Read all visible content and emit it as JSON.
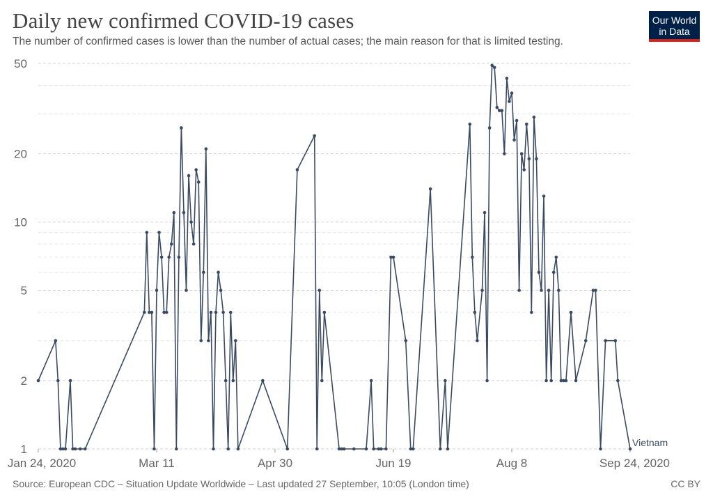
{
  "header": {
    "title": "Daily new confirmed COVID-19 cases",
    "subtitle": "The number of confirmed cases is lower than the number of actual cases; the main reason for that is limited testing."
  },
  "logo": {
    "line1": "Our World",
    "line2": "in Data",
    "bg_color": "#002147",
    "accent_color": "#ce261e"
  },
  "footer": {
    "source": "Source: European CDC – Situation Update Worldwide – Last updated 27 September, 10:05 (London time)",
    "license": "CC BY"
  },
  "chart_data": {
    "type": "line",
    "title": "Daily new confirmed COVID-19 cases",
    "y_scale": "log",
    "ylim": [
      1,
      50
    ],
    "y_ticks": [
      1,
      2,
      5,
      10,
      20,
      50
    ],
    "x_ticks": [
      "Jan 24, 2020",
      "Mar 11",
      "Apr 30",
      "Jun 19",
      "Aug 8",
      "Sep 24, 2020"
    ],
    "grid": true,
    "line_color": "#3a4a62",
    "series": [
      {
        "name": "Vietnam",
        "points": [
          [
            "2020-01-24",
            2
          ],
          [
            "2020-01-31",
            3
          ],
          [
            "2020-02-01",
            2
          ],
          [
            "2020-02-02",
            1
          ],
          [
            "2020-02-03",
            1
          ],
          [
            "2020-02-04",
            1
          ],
          [
            "2020-02-06",
            2
          ],
          [
            "2020-02-07",
            1
          ],
          [
            "2020-02-08",
            1
          ],
          [
            "2020-02-10",
            1
          ],
          [
            "2020-02-12",
            1
          ],
          [
            "2020-03-07",
            4
          ],
          [
            "2020-03-08",
            9
          ],
          [
            "2020-03-09",
            4
          ],
          [
            "2020-03-10",
            4
          ],
          [
            "2020-03-11",
            1
          ],
          [
            "2020-03-12",
            5
          ],
          [
            "2020-03-13",
            9
          ],
          [
            "2020-03-14",
            7
          ],
          [
            "2020-03-15",
            4
          ],
          [
            "2020-03-16",
            4
          ],
          [
            "2020-03-17",
            7
          ],
          [
            "2020-03-18",
            8
          ],
          [
            "2020-03-19",
            11
          ],
          [
            "2020-03-20",
            1
          ],
          [
            "2020-03-21",
            7
          ],
          [
            "2020-03-22",
            26
          ],
          [
            "2020-03-23",
            11
          ],
          [
            "2020-03-24",
            5
          ],
          [
            "2020-03-25",
            16
          ],
          [
            "2020-03-26",
            10
          ],
          [
            "2020-03-27",
            8
          ],
          [
            "2020-03-28",
            17
          ],
          [
            "2020-03-29",
            15
          ],
          [
            "2020-03-30",
            3
          ],
          [
            "2020-03-31",
            6
          ],
          [
            "2020-04-01",
            21
          ],
          [
            "2020-04-02",
            3
          ],
          [
            "2020-04-03",
            4
          ],
          [
            "2020-04-04",
            1
          ],
          [
            "2020-04-05",
            4
          ],
          [
            "2020-04-06",
            6
          ],
          [
            "2020-04-07",
            5
          ],
          [
            "2020-04-08",
            4
          ],
          [
            "2020-04-09",
            2
          ],
          [
            "2020-04-10",
            1
          ],
          [
            "2020-04-11",
            4
          ],
          [
            "2020-04-12",
            2
          ],
          [
            "2020-04-13",
            3
          ],
          [
            "2020-04-14",
            1
          ],
          [
            "2020-04-24",
            2
          ],
          [
            "2020-05-04",
            1
          ],
          [
            "2020-05-08",
            17
          ],
          [
            "2020-05-15",
            24
          ],
          [
            "2020-05-16",
            1
          ],
          [
            "2020-05-17",
            5
          ],
          [
            "2020-05-18",
            2
          ],
          [
            "2020-05-19",
            4
          ],
          [
            "2020-05-25",
            1
          ],
          [
            "2020-05-26",
            1
          ],
          [
            "2020-05-27",
            1
          ],
          [
            "2020-05-31",
            1
          ],
          [
            "2020-06-05",
            1
          ],
          [
            "2020-06-07",
            2
          ],
          [
            "2020-06-08",
            1
          ],
          [
            "2020-06-10",
            1
          ],
          [
            "2020-06-11",
            1
          ],
          [
            "2020-06-13",
            1
          ],
          [
            "2020-06-15",
            7
          ],
          [
            "2020-06-16",
            7
          ],
          [
            "2020-06-21",
            3
          ],
          [
            "2020-06-23",
            1
          ],
          [
            "2020-06-24",
            1
          ],
          [
            "2020-07-01",
            14
          ],
          [
            "2020-07-05",
            1
          ],
          [
            "2020-07-07",
            2
          ],
          [
            "2020-07-08",
            1
          ],
          [
            "2020-07-17",
            27
          ],
          [
            "2020-07-18",
            7
          ],
          [
            "2020-07-19",
            4
          ],
          [
            "2020-07-20",
            3
          ],
          [
            "2020-07-22",
            5
          ],
          [
            "2020-07-23",
            11
          ],
          [
            "2020-07-24",
            2
          ],
          [
            "2020-07-25",
            26
          ],
          [
            "2020-07-26",
            49
          ],
          [
            "2020-07-27",
            48
          ],
          [
            "2020-07-28",
            32
          ],
          [
            "2020-07-29",
            31
          ],
          [
            "2020-07-30",
            31
          ],
          [
            "2020-07-31",
            20
          ],
          [
            "2020-08-01",
            43
          ],
          [
            "2020-08-02",
            34
          ],
          [
            "2020-08-03",
            37
          ],
          [
            "2020-08-04",
            23
          ],
          [
            "2020-08-05",
            28
          ],
          [
            "2020-08-06",
            5
          ],
          [
            "2020-08-07",
            20
          ],
          [
            "2020-08-08",
            17
          ],
          [
            "2020-08-09",
            27
          ],
          [
            "2020-08-10",
            19
          ],
          [
            "2020-08-11",
            4
          ],
          [
            "2020-08-12",
            29
          ],
          [
            "2020-08-13",
            19
          ],
          [
            "2020-08-14",
            6
          ],
          [
            "2020-08-15",
            5
          ],
          [
            "2020-08-16",
            13
          ],
          [
            "2020-08-17",
            2
          ],
          [
            "2020-08-18",
            5
          ],
          [
            "2020-08-19",
            2
          ],
          [
            "2020-08-20",
            6
          ],
          [
            "2020-08-21",
            7
          ],
          [
            "2020-08-22",
            5
          ],
          [
            "2020-08-23",
            2
          ],
          [
            "2020-08-24",
            2
          ],
          [
            "2020-08-25",
            2
          ],
          [
            "2020-08-27",
            4
          ],
          [
            "2020-08-29",
            2
          ],
          [
            "2020-09-02",
            3
          ],
          [
            "2020-09-05",
            5
          ],
          [
            "2020-09-06",
            5
          ],
          [
            "2020-09-08",
            1
          ],
          [
            "2020-09-10",
            3
          ],
          [
            "2020-09-14",
            3
          ],
          [
            "2020-09-15",
            2
          ],
          [
            "2020-09-20",
            1
          ]
        ]
      }
    ]
  }
}
